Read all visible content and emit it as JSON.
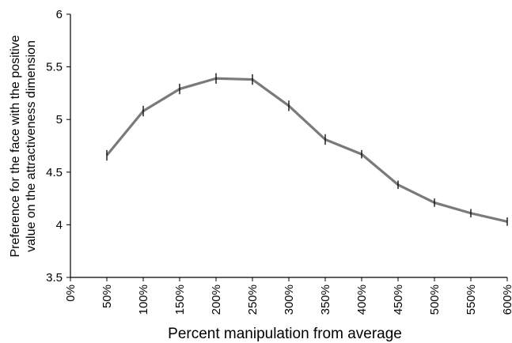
{
  "chart_data": {
    "type": "line",
    "ylabel": [
      "Preference for the face with the positive",
      "value on the attractiveness dimension"
    ],
    "xlabel": "Percent manipulation from average",
    "categories": [
      "0%",
      "50%",
      "100%",
      "150%",
      "200%",
      "250%",
      "300%",
      "350%",
      "400%",
      "450%",
      "500%",
      "550%",
      "600%"
    ],
    "values": [
      null,
      4.66,
      5.08,
      5.29,
      5.39,
      5.38,
      5.13,
      4.81,
      4.67,
      4.38,
      4.21,
      4.11,
      4.03
    ],
    "errors": [
      null,
      0.05,
      0.05,
      0.05,
      0.05,
      0.05,
      0.05,
      0.05,
      0.04,
      0.04,
      0.04,
      0.04,
      0.04
    ],
    "color": "#7a7a7a",
    "ylim": [
      3.5,
      6
    ],
    "yticks": [
      3.5,
      4,
      4.5,
      5,
      5.5,
      6
    ]
  }
}
